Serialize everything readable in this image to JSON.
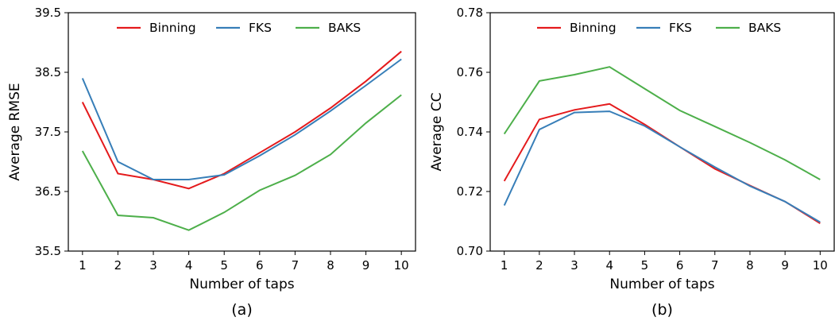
{
  "chart_data": [
    {
      "type": "line",
      "panel_label": "(a)",
      "xlabel": "Number of taps",
      "ylabel": "Average RMSE",
      "x": [
        1,
        2,
        3,
        4,
        5,
        6,
        7,
        8,
        9,
        10
      ],
      "xlim": [
        0.6,
        10.4
      ],
      "ylim": [
        35.5,
        39.5
      ],
      "yticks": [
        "35.5",
        "36.5",
        "37.5",
        "38.5",
        "39.5"
      ],
      "grid": false,
      "legend_position": "top",
      "series": [
        {
          "name": "Binning",
          "color": "#e41a1c",
          "values": [
            38.0,
            36.8,
            36.7,
            36.55,
            36.8,
            37.15,
            37.5,
            37.9,
            38.35,
            38.85
          ]
        },
        {
          "name": "FKS",
          "color": "#377eb8",
          "values": [
            38.4,
            37.0,
            36.7,
            36.7,
            36.78,
            37.1,
            37.45,
            37.85,
            38.28,
            38.72
          ]
        },
        {
          "name": "BAKS",
          "color": "#4daf4a",
          "values": [
            37.18,
            36.1,
            36.06,
            35.85,
            36.15,
            36.52,
            36.77,
            37.12,
            37.65,
            38.12
          ]
        }
      ]
    },
    {
      "type": "line",
      "panel_label": "(b)",
      "xlabel": "Number of taps",
      "ylabel": "Average CC",
      "x": [
        1,
        2,
        3,
        4,
        5,
        6,
        7,
        8,
        9,
        10
      ],
      "xlim": [
        0.6,
        10.4
      ],
      "ylim": [
        0.7,
        0.78
      ],
      "yticks": [
        "0.70",
        "0.72",
        "0.74",
        "0.76",
        "0.78"
      ],
      "grid": false,
      "legend_position": "top",
      "series": [
        {
          "name": "Binning",
          "color": "#e41a1c",
          "values": [
            0.7235,
            0.7442,
            0.7474,
            0.7494,
            0.7425,
            0.735,
            0.7276,
            0.722,
            0.7166,
            0.7093
          ]
        },
        {
          "name": "FKS",
          "color": "#377eb8",
          "values": [
            0.7153,
            0.7408,
            0.7465,
            0.7469,
            0.742,
            0.735,
            0.7282,
            0.7218,
            0.7166,
            0.7097
          ]
        },
        {
          "name": "BAKS",
          "color": "#4daf4a",
          "values": [
            0.7393,
            0.7571,
            0.7592,
            0.7618,
            0.7545,
            0.7472,
            0.7418,
            0.7364,
            0.7306,
            0.724
          ]
        }
      ]
    }
  ]
}
